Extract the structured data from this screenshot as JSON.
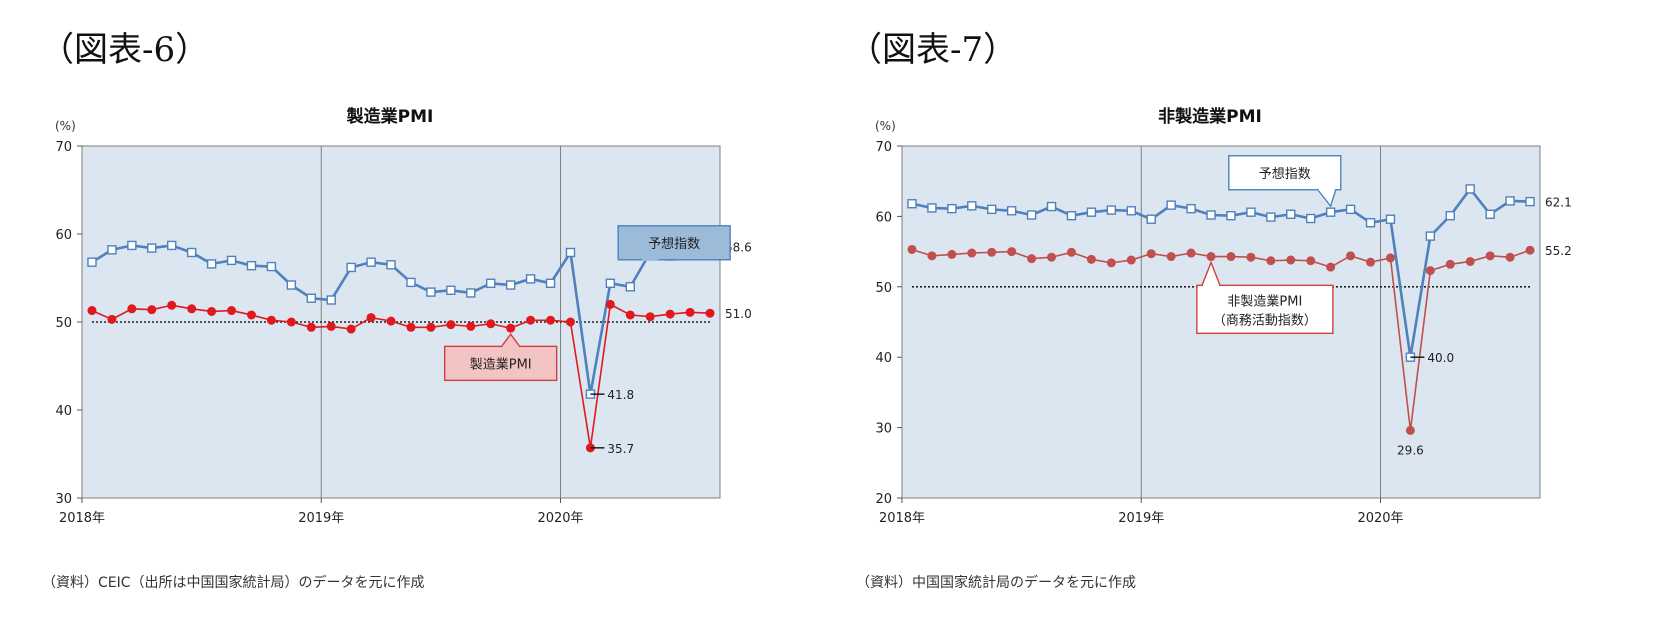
{
  "figures": [
    {
      "label": "（図表-6）",
      "source": "（資料）CEIC（出所は中国国家統計局）のデータを元に作成"
    },
    {
      "label": "（図表-7）",
      "source": "（資料）中国国家統計局のデータを元に作成"
    }
  ],
  "colors": {
    "plot_bg": "#dce6f1",
    "blue": "#4f81bd",
    "red": "#e0191e",
    "red_muted": "#c0504d",
    "callout_blue_fill": "#9bbbd9",
    "callout_blue_border": "#4f81bd",
    "callout_red_fill": "#f2c4c4",
    "callout_red_border": "#d04040",
    "callout_white_fill": "#ffffff"
  },
  "chart_data": [
    {
      "type": "line",
      "title": "製造業PMI",
      "ylabel": "(%)",
      "ylim": [
        30,
        70
      ],
      "yticks": [
        30,
        40,
        50,
        60,
        70
      ],
      "xlabels": [
        "2018年",
        "2019年",
        "2020年"
      ],
      "x_start": "2018-01",
      "reference_line": 50,
      "grid": false,
      "series": [
        {
          "name": "予想指数",
          "marker": "square",
          "color": "#4f81bd",
          "values": [
            56.8,
            58.2,
            58.7,
            58.4,
            58.7,
            57.9,
            56.6,
            57.0,
            56.4,
            56.3,
            54.2,
            52.7,
            52.5,
            56.2,
            56.8,
            56.5,
            54.5,
            53.4,
            53.6,
            53.3,
            54.4,
            54.2,
            54.9,
            54.4,
            57.9,
            41.8,
            54.4,
            54.0,
            57.9,
            57.5,
            57.8,
            58.6
          ]
        },
        {
          "name": "製造業PMI",
          "marker": "circle",
          "color": "#e0191e",
          "values": [
            51.3,
            50.3,
            51.5,
            51.4,
            51.9,
            51.5,
            51.2,
            51.3,
            50.8,
            50.2,
            50.0,
            49.4,
            49.5,
            49.2,
            50.5,
            50.1,
            49.4,
            49.4,
            49.7,
            49.5,
            49.8,
            49.3,
            50.2,
            50.2,
            50.0,
            35.7,
            52.0,
            50.8,
            50.6,
            50.9,
            51.1,
            51.0
          ]
        }
      ],
      "annotations": [
        {
          "text": "58.6",
          "series": 0,
          "index": 31,
          "style": "end"
        },
        {
          "text": "51.0",
          "series": 1,
          "index": 31,
          "style": "end"
        },
        {
          "text": "41.8",
          "series": 0,
          "index": 25,
          "style": "tick"
        },
        {
          "text": "35.7",
          "series": 1,
          "index": 25,
          "style": "tick"
        }
      ],
      "callouts": [
        {
          "text": "予想指数",
          "style": "blue",
          "series": 0,
          "index": 28,
          "box_cx": 29.2,
          "box_cy": 59.0
        },
        {
          "text": "製造業PMI",
          "style": "red",
          "series": 1,
          "index": 21,
          "box_cx": 20.5,
          "box_cy": 45.3
        }
      ]
    },
    {
      "type": "line",
      "title": "非製造業PMI",
      "ylabel": "(%)",
      "ylim": [
        20,
        70
      ],
      "yticks": [
        20,
        30,
        40,
        50,
        60,
        70
      ],
      "xlabels": [
        "2018年",
        "2019年",
        "2020年"
      ],
      "x_start": "2018-01",
      "reference_line": 50,
      "grid": false,
      "series": [
        {
          "name": "予想指数",
          "marker": "square",
          "color": "#4f81bd",
          "values": [
            61.8,
            61.2,
            61.1,
            61.5,
            61.0,
            60.8,
            60.2,
            61.4,
            60.1,
            60.6,
            60.9,
            60.8,
            59.6,
            61.6,
            61.1,
            60.2,
            60.1,
            60.6,
            59.9,
            60.3,
            59.7,
            60.6,
            61.0,
            59.1,
            59.6,
            40.0,
            57.2,
            60.1,
            63.9,
            60.3,
            62.2,
            62.1
          ]
        },
        {
          "name": "非製造業PMI",
          "sublabel": "（商務活動指数）",
          "marker": "circle",
          "color": "#c0504d",
          "values": [
            55.3,
            54.4,
            54.6,
            54.8,
            54.9,
            55.0,
            54.0,
            54.2,
            54.9,
            53.9,
            53.4,
            53.8,
            54.7,
            54.3,
            54.8,
            54.3,
            54.3,
            54.2,
            53.7,
            53.8,
            53.7,
            52.8,
            54.4,
            53.5,
            54.1,
            29.6,
            52.3,
            53.2,
            53.6,
            54.4,
            54.2,
            55.2
          ]
        }
      ],
      "annotations": [
        {
          "text": "62.1",
          "series": 0,
          "index": 31,
          "style": "end"
        },
        {
          "text": "55.2",
          "series": 1,
          "index": 31,
          "style": "end"
        },
        {
          "text": "40.0",
          "series": 0,
          "index": 25,
          "style": "tick"
        },
        {
          "text": "29.6",
          "series": 1,
          "index": 25,
          "style": "below"
        }
      ],
      "callouts": [
        {
          "text": "予想指数",
          "style": "white",
          "series": 0,
          "index": 21,
          "box_cx": 18.7,
          "box_cy": 66.2
        },
        {
          "text": "非製造業PMI",
          "style": "white_red",
          "series": 1,
          "index": 15,
          "box_cx": 17.7,
          "box_cy": 46.8
        }
      ]
    }
  ]
}
